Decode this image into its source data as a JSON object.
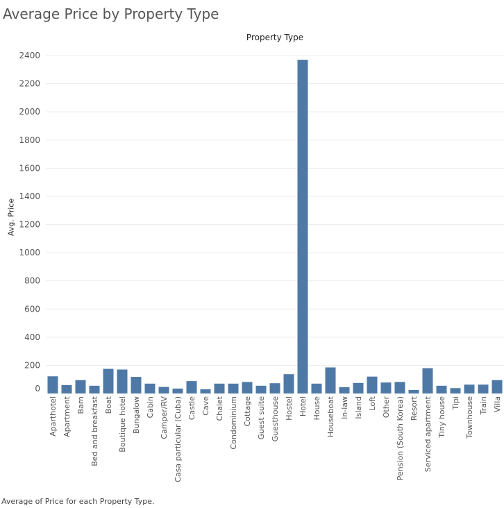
{
  "title": "Average Price by Property Type",
  "column_header": "Property Type",
  "caption": "Average of Price for each Property Type.",
  "colors": {
    "bar": "#4e79a7",
    "grid": "#ececec",
    "axis_text": "#555555"
  },
  "chart_data": {
    "type": "bar",
    "title": "Average Price by Property Type",
    "xlabel": "Property Type",
    "ylabel": "Avg. Price",
    "ylim": [
      0,
      2400
    ],
    "yticks": [
      0,
      200,
      400,
      600,
      800,
      1000,
      1200,
      1400,
      1600,
      1800,
      2000,
      2200,
      2400
    ],
    "grid": true,
    "categories": [
      "Aparthotel",
      "Apartment",
      "Barn",
      "Bed and breakfast",
      "Boat",
      "Boutique hotel",
      "Bungalow",
      "Cabin",
      "Camper/RV",
      "Casa particular (Cuba)",
      "Castle",
      "Cave",
      "Chalet",
      "Condominium",
      "Cottage",
      "Guest suite",
      "Guesthouse",
      "Hostel",
      "Hotel",
      "House",
      "Houseboat",
      "In-law",
      "Island",
      "Loft",
      "Other",
      "Pension (South Korea)",
      "Resort",
      "Serviced apartment",
      "Tiny house",
      "Tipi",
      "Townhouse",
      "Train",
      "Villa"
    ],
    "values": [
      122,
      60,
      95,
      55,
      175,
      170,
      118,
      70,
      47,
      35,
      88,
      30,
      70,
      70,
      82,
      55,
      73,
      137,
      2370,
      70,
      185,
      45,
      75,
      120,
      78,
      82,
      25,
      180,
      55,
      38,
      63,
      63,
      95
    ]
  }
}
